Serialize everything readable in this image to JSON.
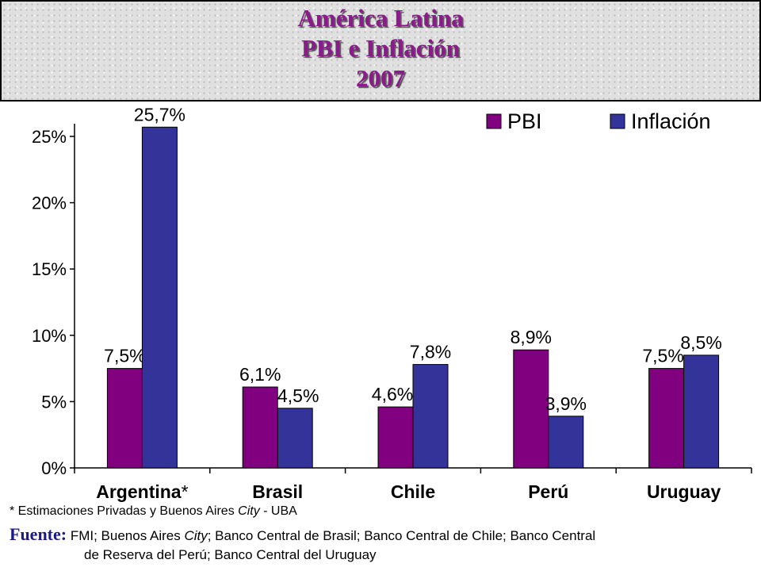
{
  "title": {
    "line1": "América Latina",
    "line2": "PBI e Inflación",
    "line3": "2007"
  },
  "chart_data": {
    "type": "bar",
    "categories": [
      "Argentina",
      "Brasil",
      "Chile",
      "Perú",
      "Uruguay"
    ],
    "category_suffix": [
      "*",
      "",
      "",
      "",
      ""
    ],
    "series": [
      {
        "name": "PBI",
        "values": [
          7.5,
          6.1,
          4.6,
          8.9,
          7.5
        ],
        "labels": [
          "7,5%",
          "6,1%",
          "4,6%",
          "8,9%",
          "7,5%"
        ],
        "color": "#800080"
      },
      {
        "name": "Inflación",
        "values": [
          25.7,
          4.5,
          7.8,
          3.9,
          8.5
        ],
        "labels": [
          "25,7%",
          "4,5%",
          "7,8%",
          "3,9%",
          "8,5%"
        ],
        "color": "#333399"
      }
    ],
    "ylim": [
      0,
      25
    ],
    "yticks": [
      0,
      5,
      10,
      15,
      20,
      25
    ],
    "ytick_labels": [
      "0%",
      "5%",
      "10%",
      "15%",
      "20%",
      "25%"
    ],
    "legend_position": "top-right",
    "grid": false
  },
  "footnote": {
    "prefix": "* Estimaciones Privadas y Buenos Aires ",
    "italic": "City",
    "suffix": " - UBA"
  },
  "source": {
    "label": "Fuente:",
    "part1": " FMI; Buenos Aires ",
    "italic": "City",
    "part2": "; Banco Central de Brasil; Banco Central de Chile; Banco Central",
    "line2": "de Reserva del Perú; Banco Central del Uruguay"
  }
}
